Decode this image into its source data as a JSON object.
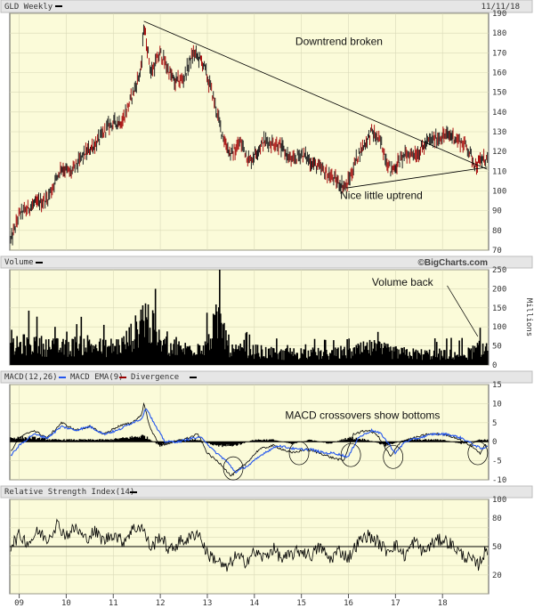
{
  "header": {
    "symbol_label": "GLD Weekly",
    "date": "11/11/18",
    "credit": "©BigCharts.com"
  },
  "x_axis": {
    "years": [
      "09",
      "10",
      "11",
      "12",
      "13",
      "14",
      "15",
      "16",
      "17",
      "18"
    ]
  },
  "chart_data": [
    {
      "type": "line",
      "panel": "price",
      "series_style": "ohlc-bars",
      "x_unit": "year (fractional, 2009 = start)",
      "ylim": [
        70,
        190
      ],
      "yticks": [
        70,
        80,
        90,
        100,
        110,
        120,
        130,
        140,
        150,
        160,
        170,
        180,
        190
      ],
      "grid": true,
      "series": [
        {
          "color": "#000000",
          "x": [
            2008.8,
            2009.0,
            2009.3,
            2009.6,
            2009.9,
            2010.1,
            2010.4,
            2010.7,
            2010.9,
            2011.2,
            2011.4,
            2011.6,
            2011.65,
            2011.8,
            2012.0,
            2012.3,
            2012.5,
            2012.7,
            2012.9,
            2013.1,
            2013.3,
            2013.5,
            2013.7,
            2013.9,
            2014.2,
            2014.5,
            2014.8,
            2015.0,
            2015.3,
            2015.6,
            2015.8,
            2015.95,
            2016.2,
            2016.5,
            2016.7,
            2016.9,
            2017.2,
            2017.5,
            2017.7,
            2018.0,
            2018.2,
            2018.5,
            2018.7,
            2018.85
          ],
          "values": [
            73,
            88,
            93,
            96,
            112,
            109,
            119,
            126,
            133,
            136,
            148,
            162,
            185,
            160,
            170,
            155,
            157,
            170,
            165,
            150,
            130,
            118,
            125,
            115,
            125,
            124,
            115,
            119,
            113,
            108,
            104,
            102,
            118,
            130,
            124,
            110,
            118,
            120,
            125,
            128,
            128,
            123,
            113,
            116
          ]
        }
      ],
      "annotations": [
        {
          "type": "text",
          "label": "Downtrend broken",
          "x": 2015.8,
          "y": 174
        },
        {
          "type": "text",
          "label": "Nice little uptrend",
          "x": 2016.7,
          "y": 96
        },
        {
          "type": "trendline",
          "x1": 2011.65,
          "y1": 186,
          "x2": 2018.95,
          "y2": 111
        },
        {
          "type": "trendline",
          "x1": 2015.95,
          "y1": 101.5,
          "x2": 2018.95,
          "y2": 112
        }
      ]
    },
    {
      "type": "bar",
      "panel": "volume",
      "title": "Volume",
      "ylabel": "Millions",
      "ylim": [
        0,
        250
      ],
      "yticks": [
        0,
        50,
        100,
        150,
        200,
        250
      ],
      "grid": true,
      "series": [
        {
          "color": "#000000",
          "x": [
            2008.8,
            2009.2,
            2009.6,
            2010.0,
            2010.4,
            2010.8,
            2011.2,
            2011.5,
            2011.65,
            2012.0,
            2012.5,
            2013.0,
            2013.25,
            2013.5,
            2014.0,
            2014.5,
            2015.0,
            2015.5,
            2016.0,
            2016.5,
            2017.0,
            2017.5,
            2018.0,
            2018.5,
            2018.85
          ],
          "values": [
            55,
            70,
            60,
            55,
            70,
            55,
            65,
            110,
            170,
            70,
            50,
            70,
            150,
            45,
            45,
            35,
            40,
            35,
            40,
            55,
            40,
            35,
            35,
            35,
            55
          ]
        }
      ],
      "annotations": [
        {
          "type": "text",
          "label": "Volume back",
          "x": 2017.15,
          "y": 208
        },
        {
          "type": "arrow",
          "x1": 2018.1,
          "y1": 208,
          "x2": 2018.75,
          "y2": 75
        }
      ]
    },
    {
      "type": "line",
      "panel": "macd",
      "title": "MACD(12,26)",
      "ylim": [
        -10,
        15
      ],
      "yticks": [
        -10,
        -5,
        0,
        5,
        10,
        15
      ],
      "grid": true,
      "series": [
        {
          "name": "MACD(12,26)",
          "color": "#000000",
          "x": [
            2008.8,
            2009.0,
            2009.3,
            2009.6,
            2009.9,
            2010.2,
            2010.5,
            2010.8,
            2011.1,
            2011.4,
            2011.6,
            2011.65,
            2011.8,
            2012.0,
            2012.3,
            2012.6,
            2012.8,
            2013.0,
            2013.3,
            2013.5,
            2013.8,
            2014.1,
            2014.4,
            2014.8,
            2015.1,
            2015.4,
            2015.6,
            2015.9,
            2016.1,
            2016.4,
            2016.6,
            2016.9,
            2017.1,
            2017.4,
            2017.7,
            2018.0,
            2018.3,
            2018.6,
            2018.8,
            2018.9
          ],
          "values": [
            -3,
            1,
            3,
            1,
            5,
            3,
            4,
            2,
            4,
            5,
            7,
            10,
            3,
            -1,
            0,
            1,
            2,
            -3,
            -6,
            -9,
            -6,
            -2,
            -1,
            -3,
            -2,
            -3,
            -4,
            -5,
            2,
            3,
            2,
            -4,
            0,
            1,
            2,
            2,
            1,
            -1,
            -3,
            -1
          ]
        },
        {
          "name": "MACD EMA(9)",
          "color": "#2255ee",
          "x": [
            2008.8,
            2009.0,
            2009.3,
            2009.6,
            2009.9,
            2010.2,
            2010.5,
            2010.8,
            2011.1,
            2011.4,
            2011.6,
            2011.7,
            2011.9,
            2012.1,
            2012.4,
            2012.7,
            2012.9,
            2013.1,
            2013.4,
            2013.6,
            2013.9,
            2014.2,
            2014.5,
            2014.9,
            2015.2,
            2015.5,
            2015.7,
            2016.0,
            2016.2,
            2016.5,
            2016.7,
            2017.0,
            2017.2,
            2017.5,
            2017.8,
            2018.1,
            2018.4,
            2018.7,
            2018.85,
            2018.95
          ],
          "values": [
            -4,
            -1,
            2,
            1,
            4,
            3,
            4,
            2,
            3,
            5,
            6,
            9,
            4,
            0,
            0,
            1,
            1,
            -2,
            -5,
            -8,
            -6,
            -3,
            -1,
            -2,
            -2,
            -3,
            -3,
            -4,
            1,
            3,
            2,
            -3,
            0,
            1,
            2,
            2,
            1,
            -1,
            -2,
            -1
          ]
        },
        {
          "name": "Divergence",
          "color": "#990000",
          "x": [
            2008.9,
            2009.3,
            2009.7,
            2010.1,
            2010.5,
            2010.9,
            2011.3,
            2011.65,
            2012.0,
            2012.4,
            2012.8,
            2013.2,
            2013.6,
            2014.0,
            2014.4,
            2014.8,
            2015.2,
            2015.6,
            2016.0,
            2016.4,
            2016.8,
            2017.2,
            2017.6,
            2018.0,
            2018.4,
            2018.8
          ],
          "values": [
            1,
            1,
            0.5,
            0.5,
            0.5,
            0.5,
            1,
            1.5,
            -1,
            0.5,
            0.5,
            -1,
            -1,
            0.5,
            0.5,
            -0.5,
            0.5,
            -0.5,
            1,
            0.5,
            -1,
            0.5,
            0.5,
            0.5,
            -0.5,
            0.5
          ]
        }
      ],
      "annotations": [
        {
          "type": "text",
          "label": "MACD crossovers show bottoms",
          "x": 2016.3,
          "y": 6
        },
        {
          "type": "circle",
          "x": 2013.55,
          "y": -7
        },
        {
          "type": "circle",
          "x": 2014.95,
          "y": -3
        },
        {
          "type": "circle",
          "x": 2016.05,
          "y": -3.5
        },
        {
          "type": "circle",
          "x": 2016.95,
          "y": -4
        },
        {
          "type": "circle",
          "x": 2018.75,
          "y": -3
        }
      ]
    },
    {
      "type": "line",
      "panel": "rsi",
      "title": "Relative Strength Index(14)",
      "ylim": [
        0,
        100
      ],
      "yticks": [
        0,
        20,
        30,
        40,
        50,
        60,
        70,
        80,
        100
      ],
      "tick_labels": [
        20,
        50,
        80,
        100
      ],
      "reference_line": 50,
      "grid": true,
      "series": [
        {
          "color": "#000000",
          "x": [
            2008.8,
            2009.0,
            2009.2,
            2009.4,
            2009.6,
            2009.8,
            2010.0,
            2010.2,
            2010.4,
            2010.6,
            2010.8,
            2011.0,
            2011.2,
            2011.4,
            2011.6,
            2011.8,
            2012.0,
            2012.2,
            2012.4,
            2012.6,
            2012.8,
            2013.0,
            2013.2,
            2013.4,
            2013.6,
            2013.8,
            2014.0,
            2014.2,
            2014.4,
            2014.6,
            2014.8,
            2015.0,
            2015.2,
            2015.4,
            2015.6,
            2015.8,
            2016.0,
            2016.2,
            2016.4,
            2016.6,
            2016.8,
            2017.0,
            2017.2,
            2017.4,
            2017.6,
            2017.8,
            2018.0,
            2018.2,
            2018.4,
            2018.6,
            2018.75,
            2018.9
          ],
          "values": [
            50,
            62,
            54,
            66,
            58,
            74,
            62,
            70,
            58,
            66,
            56,
            64,
            55,
            68,
            72,
            48,
            62,
            45,
            55,
            58,
            66,
            42,
            36,
            26,
            40,
            34,
            44,
            38,
            48,
            36,
            42,
            46,
            40,
            50,
            36,
            46,
            38,
            54,
            62,
            56,
            46,
            52,
            40,
            56,
            44,
            54,
            58,
            52,
            42,
            36,
            30,
            44
          ]
        }
      ]
    }
  ]
}
